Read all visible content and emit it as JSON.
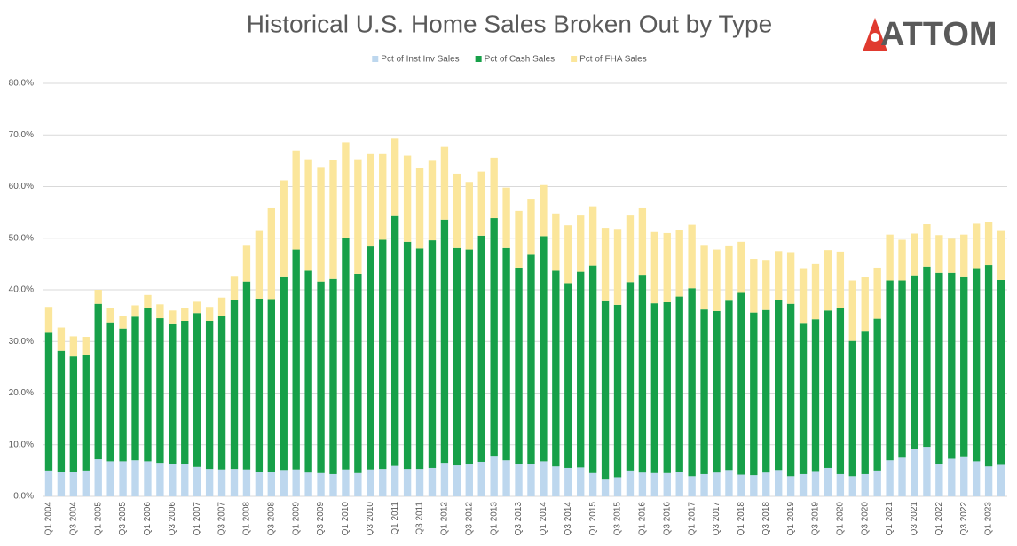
{
  "logo": "ATTOM",
  "chart_data": {
    "type": "stacked-bar",
    "title": "Historical U.S. Home Sales Broken Out by Type",
    "categories": [
      "Q1 2004",
      null,
      "Q3 2004",
      null,
      "Q1 2005",
      null,
      "Q3 2005",
      null,
      "Q1 2006",
      null,
      "Q3 2006",
      null,
      "Q1 2007",
      null,
      "Q3 2007",
      null,
      "Q1 2008",
      null,
      "Q3 2008",
      null,
      "Q1 2009",
      null,
      "Q3 2009",
      null,
      "Q1 2010",
      null,
      "Q3 2010",
      null,
      "Q1 2011",
      null,
      "Q3 2011",
      null,
      "Q1 2012",
      null,
      "Q3 2012",
      null,
      "Q1 2013",
      null,
      "Q3 2013",
      null,
      "Q1 2014",
      null,
      "Q3 2014",
      null,
      "Q1 2015",
      null,
      "Q3 2015",
      null,
      "Q1 2016",
      null,
      "Q3 2016",
      null,
      "Q1 2017",
      null,
      "Q3 2017",
      null,
      "Q1 2018",
      null,
      "Q3 2018",
      null,
      "Q1 2019",
      null,
      "Q3 2019",
      null,
      "Q1 2020",
      null,
      "Q3 2020",
      null,
      "Q1 2021",
      null,
      "Q3 2021",
      null,
      "Q1 2022",
      null,
      "Q3 2022",
      null,
      "Q1 2023",
      null
    ],
    "series": [
      {
        "name": "Pct of Inst Inv Sales",
        "color": "#bdd7ee",
        "values": [
          5,
          4.7,
          4.8,
          5,
          7.2,
          6.8,
          6.8,
          7,
          6.8,
          6.5,
          6.2,
          6.2,
          5.7,
          5.3,
          5.2,
          5.3,
          5.2,
          4.7,
          4.7,
          5.1,
          5.2,
          4.6,
          4.5,
          4.3,
          5.2,
          4.5,
          5.2,
          5.3,
          5.9,
          5.3,
          5.3,
          5.5,
          6.5,
          6,
          6.2,
          6.7,
          7.7,
          7,
          6.2,
          6.2,
          6.8,
          5.8,
          5.5,
          5.6,
          4.5,
          3.4,
          3.7,
          5,
          4.6,
          4.5,
          4.5,
          4.8,
          3.9,
          4.3,
          4.6,
          5.1,
          4.2,
          4.1,
          4.6,
          5.1,
          3.9,
          4.3,
          4.9,
          5.5,
          4.3,
          3.9,
          4.3,
          5,
          7,
          7.5,
          9.1,
          9.6,
          6.3,
          7.3,
          7.6,
          6.8,
          5.8,
          6.1
        ]
      },
      {
        "name": "Pct of Cash Sales",
        "color": "#17a049",
        "values": [
          26.7,
          23.5,
          22.3,
          22.4,
          30.1,
          26.9,
          25.7,
          27.8,
          29.7,
          28,
          27.3,
          27.8,
          29.8,
          28.7,
          29.8,
          32.7,
          36.4,
          33.6,
          33.5,
          37.5,
          42.6,
          39.1,
          37.1,
          37.8,
          44.8,
          38.6,
          43.2,
          44.4,
          48.4,
          44,
          42.7,
          44.1,
          47.1,
          42.1,
          41.6,
          43.8,
          46.2,
          41.1,
          38.1,
          40.6,
          43.6,
          37.9,
          35.8,
          37.9,
          40.2,
          34.4,
          33.4,
          36.5,
          38.3,
          32.9,
          33.1,
          33.9,
          36.4,
          31.9,
          31.3,
          32.8,
          35.2,
          31.5,
          31.5,
          32.9,
          33.4,
          29.3,
          29.4,
          30.5,
          32.2,
          26.2,
          27.6,
          29.4,
          34.8,
          34.3,
          33.7,
          34.9,
          37,
          36,
          35,
          37.4,
          39,
          35.8
        ]
      },
      {
        "name": "Pct of FHA Sales",
        "color": "#fbe69b",
        "values": [
          5,
          4.5,
          3.9,
          3.5,
          2.7,
          2.8,
          2.5,
          2.2,
          2.5,
          2.7,
          2.5,
          2.4,
          2.2,
          2.7,
          3.5,
          4.7,
          7.1,
          13.1,
          17.6,
          18.6,
          19.2,
          21.6,
          22.2,
          23,
          18.6,
          22.2,
          17.9,
          16.6,
          15,
          16.7,
          15.6,
          15.4,
          14.1,
          14.4,
          13.1,
          12.4,
          11.7,
          11.7,
          11,
          10.7,
          9.9,
          11.1,
          11.2,
          10.9,
          11.5,
          14.2,
          14.7,
          12.9,
          12.9,
          13.8,
          13.4,
          12.8,
          12.3,
          12.5,
          11.9,
          10.7,
          9.9,
          10.4,
          9.7,
          9.5,
          10,
          10.6,
          10.7,
          11.7,
          10.9,
          11.7,
          10.5,
          9.9,
          8.9,
          7.9,
          8.1,
          8.2,
          7.3,
          6.6,
          8.1,
          8.6,
          8.3,
          9.5
        ]
      }
    ],
    "ylim": [
      0,
      80
    ],
    "yticks": [
      {
        "value": 0,
        "label": "0.0%"
      },
      {
        "value": 10,
        "label": "10.0%"
      },
      {
        "value": 20,
        "label": "20.0%"
      },
      {
        "value": 30,
        "label": "30.0%"
      },
      {
        "value": 40,
        "label": "40.0%"
      },
      {
        "value": 50,
        "label": "50.0%"
      },
      {
        "value": 60,
        "label": "60.0%"
      },
      {
        "value": 70,
        "label": "70.0%"
      },
      {
        "value": 80,
        "label": "80.0%"
      }
    ],
    "grid": true,
    "legend": "top"
  }
}
